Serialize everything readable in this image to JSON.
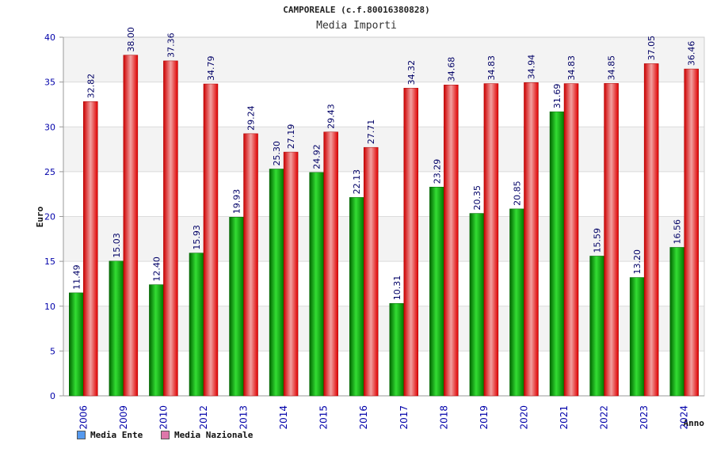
{
  "chart_data": {
    "type": "bar",
    "title": "CAMPOREALE (c.f.80016380828)",
    "subtitle": "Media Importi",
    "xlabel": "Anno",
    "ylabel": "Euro",
    "ylim": [
      0,
      40
    ],
    "yticks": [
      "0",
      "5",
      "10",
      "15",
      "20",
      "25",
      "30",
      "35",
      "40"
    ],
    "grid": true,
    "legend_position": "bottom-left",
    "categories": [
      "2006",
      "2009",
      "2010",
      "2012",
      "2013",
      "2014",
      "2015",
      "2016",
      "2017",
      "2018",
      "2019",
      "2020",
      "2021",
      "2022",
      "2023",
      "2024"
    ],
    "series": [
      {
        "name": "Media Ente",
        "color": "#00c000",
        "swatch": "#5599ee",
        "values": [
          11.49,
          15.03,
          12.4,
          15.93,
          19.93,
          25.3,
          24.92,
          22.13,
          10.31,
          23.29,
          20.35,
          20.85,
          31.69,
          15.59,
          13.2,
          16.56
        ],
        "labels": [
          "11.49",
          "15.03",
          "12.40",
          "15.93",
          "19.93",
          "25.30",
          "24.92",
          "22.13",
          "10.31",
          "23.29",
          "20.35",
          "20.85",
          "31.69",
          "15.59",
          "13.20",
          "16.56"
        ]
      },
      {
        "name": "Media Nazionale",
        "color": "#ee1111",
        "swatch": "#dd77aa",
        "values": [
          32.82,
          38.0,
          37.36,
          34.79,
          29.24,
          27.19,
          29.43,
          27.71,
          34.32,
          34.68,
          34.83,
          34.94,
          34.83,
          34.85,
          37.05,
          36.46
        ],
        "labels": [
          "32.82",
          "38.00",
          "37.36",
          "34.79",
          "29.24",
          "27.19",
          "29.43",
          "27.71",
          "34.32",
          "34.68",
          "34.83",
          "34.94",
          "34.83",
          "34.85",
          "37.05",
          "36.46"
        ]
      }
    ]
  }
}
